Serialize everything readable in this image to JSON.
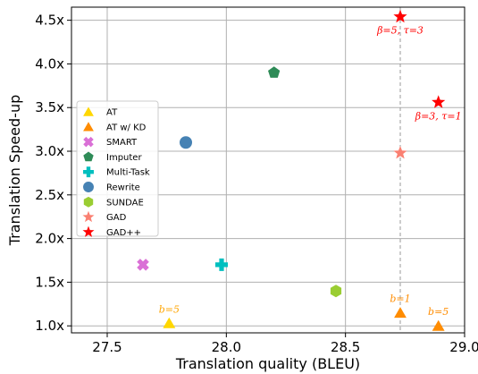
{
  "chart_data": {
    "type": "scatter",
    "xlabel": "Translation quality (BLEU)",
    "ylabel": "Translation Speed-up",
    "xlim": [
      27.35,
      29.0
    ],
    "ylim": [
      0.92,
      4.65
    ],
    "x_ticks": [
      27.5,
      28.0,
      28.5,
      29.0
    ],
    "x_tick_labels": [
      "27.5",
      "28.0",
      "28.5",
      "29.0"
    ],
    "y_ticks": [
      1.0,
      1.5,
      2.0,
      2.5,
      3.0,
      3.5,
      4.0,
      4.5
    ],
    "y_tick_labels": [
      "1.0x",
      "1.5x",
      "2.0x",
      "2.5x",
      "3.0x",
      "3.5x",
      "4.0x",
      "4.5x"
    ],
    "grid": true,
    "legend_position": "left-middle",
    "reference_line_x": 28.73,
    "series": [
      {
        "name": "AT",
        "marker": "triangle",
        "color": "#ffd700",
        "points": [
          {
            "x": 27.76,
            "y": 1.03
          }
        ]
      },
      {
        "name": "AT w/ KD",
        "marker": "triangle",
        "color": "#ff8c00",
        "points": [
          {
            "x": 28.73,
            "y": 1.15
          },
          {
            "x": 28.89,
            "y": 1.0
          }
        ]
      },
      {
        "name": "SMART",
        "marker": "x",
        "color": "#da70d6",
        "points": [
          {
            "x": 27.65,
            "y": 1.7
          }
        ]
      },
      {
        "name": "Imputer",
        "marker": "pentagon",
        "color": "#2e8b57",
        "points": [
          {
            "x": 28.2,
            "y": 3.9
          }
        ]
      },
      {
        "name": "Multi-Task",
        "marker": "plus",
        "color": "#00bfbf",
        "points": [
          {
            "x": 27.98,
            "y": 1.7
          }
        ]
      },
      {
        "name": "Rewrite",
        "marker": "circle",
        "color": "#4682b4",
        "points": [
          {
            "x": 27.83,
            "y": 3.1
          }
        ]
      },
      {
        "name": "SUNDAE",
        "marker": "hexagon",
        "color": "#9acd32",
        "points": [
          {
            "x": 28.46,
            "y": 1.4
          }
        ]
      },
      {
        "name": "GAD",
        "marker": "star",
        "color": "#fa8072",
        "points": [
          {
            "x": 28.73,
            "y": 2.98
          }
        ]
      },
      {
        "name": "GAD++",
        "marker": "star",
        "color": "#ff0000",
        "points": [
          {
            "x": 28.73,
            "y": 4.54
          },
          {
            "x": 28.89,
            "y": 3.56
          }
        ]
      }
    ],
    "annotations": [
      {
        "text": "b=5",
        "x": 27.76,
        "y": 1.03,
        "color": "#ffa500",
        "position": "above"
      },
      {
        "text": "b=1",
        "x": 28.73,
        "y": 1.15,
        "color": "#ff8c00",
        "position": "above"
      },
      {
        "text": "b=5",
        "x": 28.89,
        "y": 1.0,
        "color": "#ff8c00",
        "position": "above"
      },
      {
        "text": "β=5, τ=3",
        "x": 28.73,
        "y": 4.54,
        "color": "#ff0000",
        "position": "below"
      },
      {
        "text": "β=3, τ=1",
        "x": 28.89,
        "y": 3.56,
        "color": "#ff0000",
        "position": "below"
      }
    ]
  }
}
